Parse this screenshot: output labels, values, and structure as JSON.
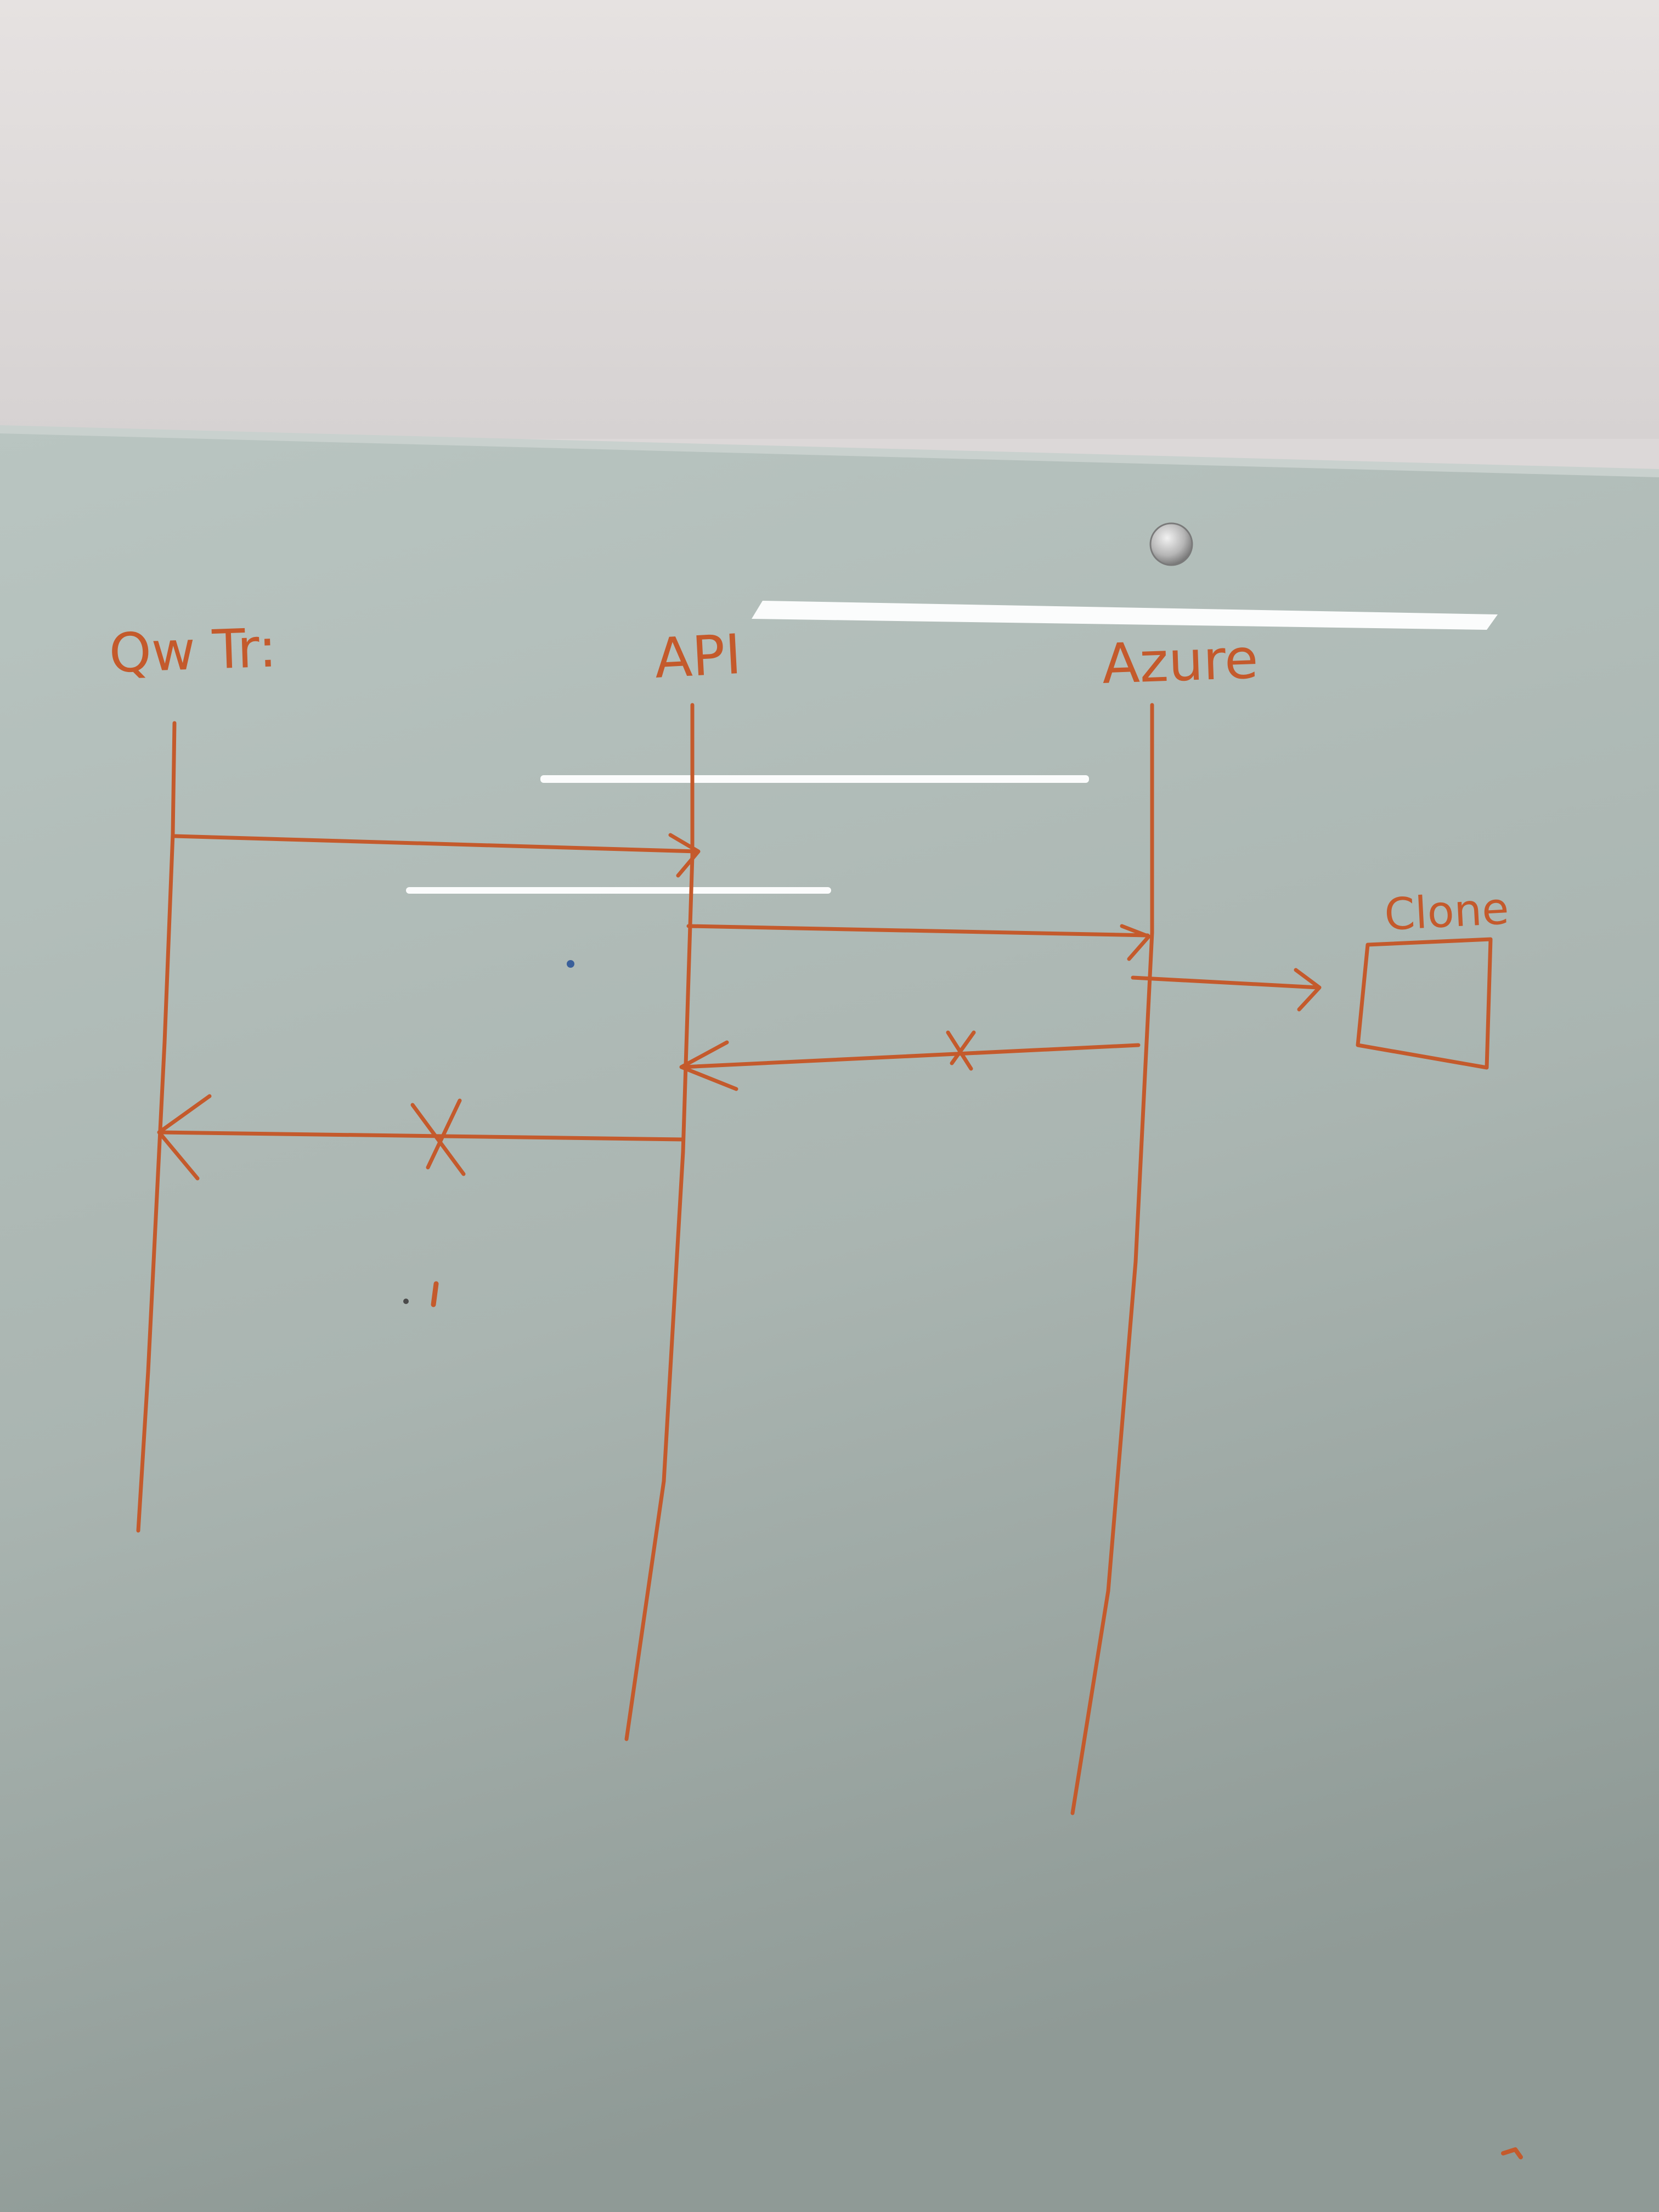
{
  "diagram": {
    "participants": [
      {
        "id": "p1",
        "label": "Qw Tr:"
      },
      {
        "id": "p2",
        "label": "API"
      },
      {
        "id": "p3",
        "label": "Azure"
      }
    ],
    "external_box": {
      "label": "Clone"
    },
    "messages": [
      {
        "from": "p1",
        "to": "p2",
        "status": "sent"
      },
      {
        "from": "p2",
        "to": "p3",
        "status": "sent"
      },
      {
        "from": "p3",
        "to": "Clone",
        "status": "sent"
      },
      {
        "from": "p3",
        "to": "p2",
        "status": "failed",
        "mark": "X"
      },
      {
        "from": "p2",
        "to": "p1",
        "status": "failed",
        "mark": "X"
      }
    ]
  },
  "colors": {
    "marker": "#c45a2c",
    "wall": "#dcd8d8",
    "board_top": "#b7c3bf",
    "board_bottom": "#8e9995",
    "glare": "#ffffff",
    "magnet": "#a9a9a9"
  }
}
